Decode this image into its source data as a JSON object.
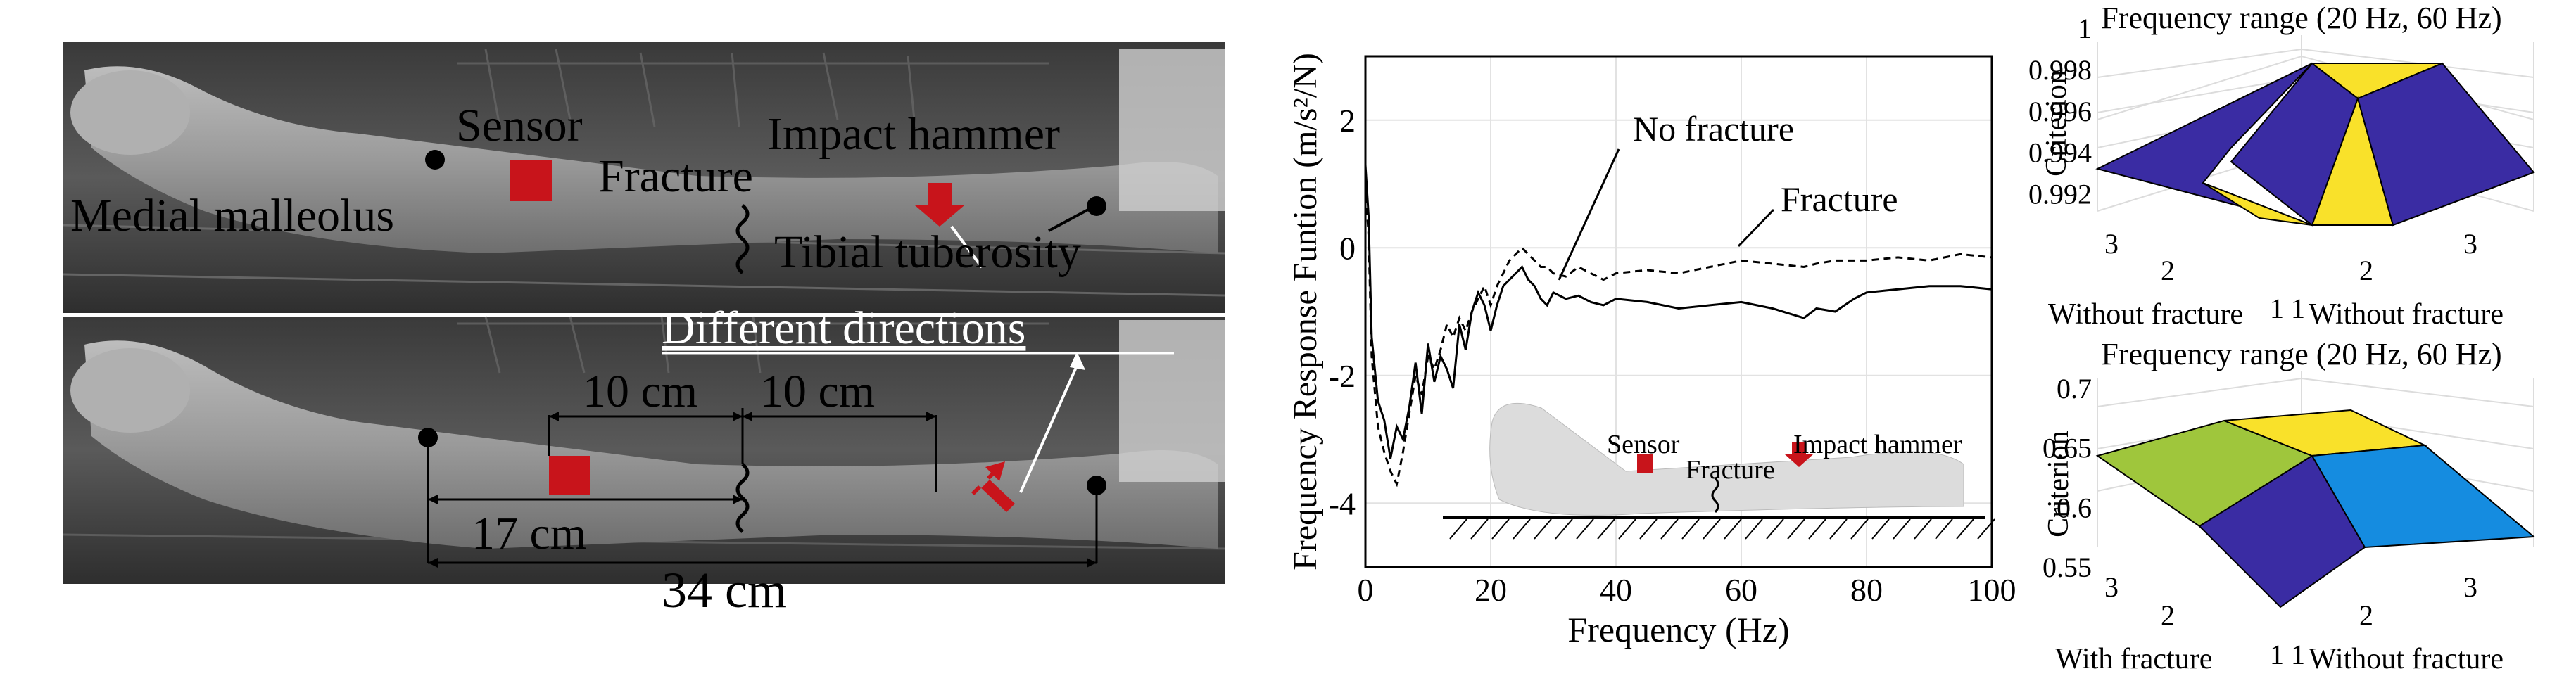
{
  "photo": {
    "top_labels": {
      "sensor": "Sensor",
      "impact_hammer": "Impact hammer",
      "fracture": "Fracture",
      "medial_malleolus": "Medial malleolus",
      "tibial_tuberosity": "Tibial tuberosity"
    },
    "bottom_labels": {
      "different_directions": "Different  directions",
      "dist_10cm_a": "10 cm",
      "dist_10cm_b": "10 cm",
      "dist_17cm": "17 cm",
      "dist_34cm": "34 cm"
    },
    "colors": {
      "marker": "#c8141b",
      "dot": "#000000"
    }
  },
  "chart_data": [
    {
      "type": "line",
      "xlabel": "Frequency (Hz)",
      "ylabel": "Frequency Response Funtion (m/s²/N)",
      "xlim": [
        0,
        100
      ],
      "ylim": [
        -5,
        3
      ],
      "xticks": [
        0,
        20,
        40,
        60,
        80,
        100
      ],
      "yticks": [
        -4,
        -2,
        0,
        2
      ],
      "grid": true,
      "annotations": [
        "No fracture",
        "Fracture"
      ],
      "inset_labels": {
        "sensor": "Sensor",
        "fracture": "Fracture",
        "impact_hammer": "Impact hammer"
      },
      "x": [
        0,
        0.5,
        1,
        2,
        3,
        4,
        5,
        6,
        7,
        8,
        9,
        10,
        11,
        12,
        13,
        14,
        15,
        16,
        17,
        18,
        19,
        20,
        21,
        22,
        23,
        24,
        25,
        26,
        27,
        28,
        29,
        30,
        32,
        34,
        36,
        38,
        40,
        45,
        50,
        55,
        60,
        65,
        70,
        72,
        75,
        78,
        80,
        85,
        90,
        95,
        100
      ],
      "series": [
        {
          "style": "solid",
          "values": [
            1.3,
            0.5,
            -1.4,
            -2.4,
            -2.7,
            -3.3,
            -2.8,
            -3.0,
            -2.5,
            -1.8,
            -2.6,
            -1.5,
            -2.1,
            -1.7,
            -1.9,
            -2.2,
            -1.2,
            -1.6,
            -1.0,
            -0.7,
            -0.9,
            -1.3,
            -0.9,
            -0.6,
            -0.5,
            -0.4,
            -0.3,
            -0.5,
            -0.6,
            -0.8,
            -0.9,
            -0.7,
            -0.8,
            -0.75,
            -0.85,
            -0.9,
            -0.8,
            -0.85,
            -0.95,
            -0.9,
            -0.85,
            -0.95,
            -1.1,
            -0.95,
            -1.0,
            -0.8,
            -0.7,
            -0.65,
            -0.6,
            -0.6,
            -0.65
          ]
        },
        {
          "style": "dashed",
          "values": [
            1.0,
            0.2,
            -1.7,
            -2.8,
            -3.2,
            -3.5,
            -3.7,
            -3.2,
            -2.6,
            -2.0,
            -2.3,
            -1.7,
            -1.9,
            -1.6,
            -1.2,
            -1.4,
            -1.1,
            -1.3,
            -1.0,
            -0.8,
            -0.6,
            -0.9,
            -0.6,
            -0.4,
            -0.2,
            -0.1,
            0.0,
            -0.1,
            -0.2,
            -0.3,
            -0.3,
            -0.4,
            -0.45,
            -0.3,
            -0.4,
            -0.5,
            -0.4,
            -0.35,
            -0.4,
            -0.3,
            -0.2,
            -0.25,
            -0.3,
            -0.25,
            -0.2,
            -0.2,
            -0.2,
            -0.15,
            -0.2,
            -0.1,
            -0.15
          ]
        }
      ]
    },
    {
      "type": "surface",
      "title": "Frequency range (20 Hz, 60 Hz)",
      "zlabel": "Criterion",
      "xlabel": "Without fracture",
      "ylabel": "Without fracture",
      "zlim": [
        0.991,
        1.0
      ],
      "zticks": [
        0.992,
        0.994,
        0.996,
        0.998,
        1
      ],
      "xticks": [
        1,
        2,
        3
      ],
      "yticks": [
        1,
        2,
        3
      ],
      "z": [
        [
          1.0,
          0.992,
          1.0
        ],
        [
          0.992,
          1.0,
          0.992
        ],
        [
          1.0,
          0.992,
          1.0
        ]
      ],
      "colors": {
        "high": "#f9e12a",
        "low": "#3a2ca3"
      }
    },
    {
      "type": "surface",
      "title": "Frequency range (20 Hz, 60 Hz)",
      "zlabel": "Criterion",
      "xlabel": "With fracture",
      "ylabel": "Without fracture",
      "zlim": [
        0.54,
        0.72
      ],
      "zticks": [
        0.55,
        0.6,
        0.65,
        0.7
      ],
      "xticks": [
        1,
        2,
        3
      ],
      "yticks": [
        1,
        2,
        3
      ],
      "z": [
        [
          0.55,
          0.64,
          0.7
        ],
        [
          0.56,
          0.65,
          0.7
        ],
        [
          0.57,
          0.6,
          0.67
        ]
      ],
      "colors": {
        "yellow": "#f9e12a",
        "olive": "#9fc63c",
        "blue": "#158ce0",
        "indigo": "#3a2ca3"
      }
    }
  ]
}
